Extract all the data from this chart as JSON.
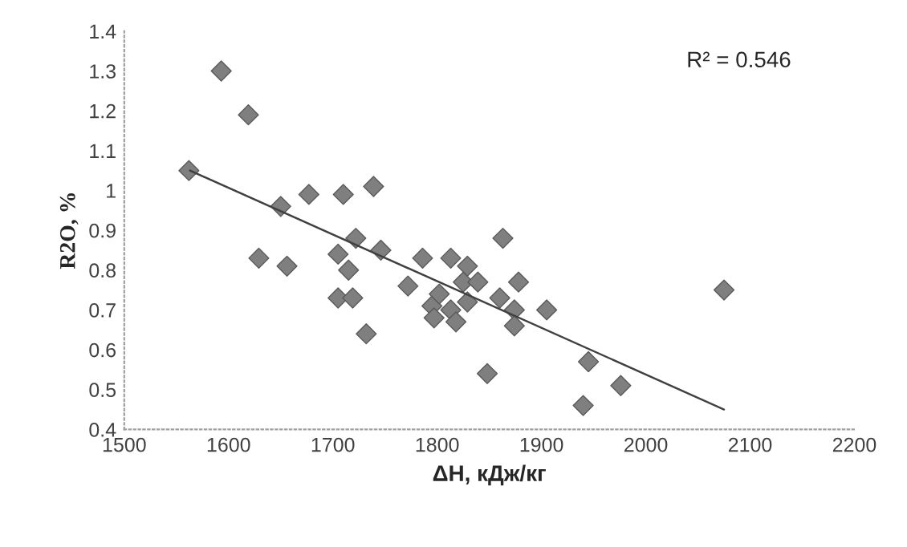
{
  "chart_data": {
    "type": "scatter",
    "xlabel": "ΔH, кДж/кг",
    "ylabel": "R2O, %",
    "xlim": [
      1500,
      2200
    ],
    "ylim": [
      0.4,
      1.4
    ],
    "xticks": [
      1500,
      1600,
      1700,
      1800,
      1900,
      2000,
      2100,
      2200
    ],
    "yticks": [
      0.4,
      0.5,
      0.6,
      0.7,
      0.8,
      0.9,
      1,
      1.1,
      1.2,
      1.3,
      1.4
    ],
    "grid": false,
    "legend": false,
    "annotations": [
      "R² = 0.546"
    ],
    "series": [
      {
        "marker": "diamond",
        "color": "#7f7f7f",
        "x": [
          1562,
          1593,
          1619,
          1650,
          1677,
          1710,
          1739,
          1629,
          1656,
          1722,
          1705,
          1746,
          1715,
          1705,
          1719,
          1732,
          1772,
          1786,
          1813,
          1829,
          1825,
          1839,
          1829,
          1795,
          1802,
          1797,
          1813,
          1818,
          1848,
          1863,
          1860,
          1878,
          1874,
          1874,
          1905,
          1945,
          1940,
          1976,
          2075
        ],
        "values": [
          1.05,
          1.3,
          1.19,
          0.96,
          0.99,
          0.99,
          1.01,
          0.83,
          0.81,
          0.88,
          0.84,
          0.85,
          0.8,
          0.73,
          0.73,
          0.64,
          0.76,
          0.83,
          0.83,
          0.81,
          0.77,
          0.77,
          0.72,
          0.71,
          0.74,
          0.68,
          0.7,
          0.67,
          0.54,
          0.88,
          0.73,
          0.77,
          0.7,
          0.66,
          0.7,
          0.57,
          0.46,
          0.51,
          0.75
        ]
      },
      {
        "type": "line",
        "marker": "none",
        "color": "#404040",
        "x": [
          1563,
          2075
        ],
        "values": [
          1.05,
          0.45
        ]
      }
    ]
  }
}
